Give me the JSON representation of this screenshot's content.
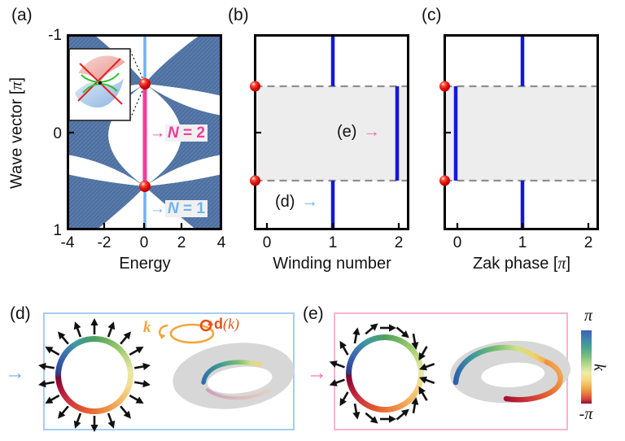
{
  "figure_labels": {
    "a": "(a)",
    "b": "(b)",
    "c": "(c)",
    "d": "(d)",
    "e": "(e)"
  },
  "panel_a": {
    "ylabel_pre": "Wave vector [",
    "pi": "π",
    "ylabel_post": "]",
    "xlabel": "Energy",
    "yticks": [
      "-1",
      "0",
      "1"
    ],
    "xticks": [
      "-4",
      "-2",
      "0",
      "2",
      "4"
    ],
    "n2_arrow": "→",
    "n2_var": "N",
    "n2_rest": " = 2",
    "n1_arrow": "→",
    "n1_var": "N",
    "n1_rest": " = 1"
  },
  "panel_b": {
    "xlabel": "Winding number",
    "xticks": [
      "0",
      "1",
      "2"
    ],
    "ref_d": "(d)",
    "ref_d_arrow": "→",
    "ref_e": "(e)",
    "ref_e_arrow": "→"
  },
  "panel_c": {
    "xlabel_pre": "Zak phase [",
    "pi": "π",
    "xlabel_post": "]",
    "xticks": [
      "0",
      "1",
      "2"
    ]
  },
  "panel_d": {
    "pointer_arrow": "→",
    "k_label": "k",
    "d_label_bold": "d",
    "d_label_arg": "(k)"
  },
  "panel_e": {
    "pointer_arrow": "→"
  },
  "colorbar": {
    "top": "π",
    "bottom": "-π",
    "axis_label": "k"
  },
  "colors": {
    "band_blue": "#4d70a2",
    "edge_line_cyan": "#6fb2ef",
    "edge_line_pink": "#f23d9a",
    "data_line_blue": "#1318d8",
    "dirac_dot_red": "#e21010",
    "dashed_gray": "#8f8f8f",
    "shade_gray": "#ededed",
    "box_d_border": "#a6cdf2",
    "box_e_border": "#f8b4d2",
    "annotation_orange": "#f2a63a",
    "annotation_red_orange": "#e84e1b"
  },
  "chart_data": [
    {
      "type": "area",
      "panel": "(a)",
      "title": "Bulk spectrum (blue bands) with zero-energy edge modes",
      "xlabel": "Energy",
      "ylabel": "Wave vector [π]",
      "xlim": [
        -4,
        4
      ],
      "ylim": [
        -1,
        1
      ],
      "xticks": [
        -4,
        -2,
        0,
        2,
        4
      ],
      "yticks": [
        -1,
        0,
        1
      ],
      "dirac_points": [
        {
          "energy": 0,
          "wave_vector": -0.5
        },
        {
          "energy": 0,
          "wave_vector": 0.5
        }
      ],
      "edge_modes": [
        {
          "energy": 0,
          "wave_vector_range": [
            -1,
            -0.5
          ],
          "label": "N = 1",
          "color": "#6fb2ef"
        },
        {
          "energy": 0,
          "wave_vector_range": [
            -0.5,
            0.5
          ],
          "label": "N = 2",
          "color": "#f23d9a"
        },
        {
          "energy": 0,
          "wave_vector_range": [
            0.5,
            1
          ],
          "label": "N = 1",
          "color": "#6fb2ef"
        }
      ],
      "inset": "Dirac-cone band crossing (3D surfaces meeting at a point)"
    },
    {
      "type": "line",
      "panel": "(b)",
      "xlabel": "Winding number",
      "xlim": [
        -0.25,
        2.25
      ],
      "ylabel": "Wave vector [π]",
      "ylim": [
        -1,
        1
      ],
      "xticks": [
        0,
        1,
        2
      ],
      "segments": [
        {
          "wave_vector_range": [
            -1,
            -0.5
          ],
          "winding_number": 1
        },
        {
          "wave_vector_range": [
            -0.5,
            0.5
          ],
          "winding_number": 2
        },
        {
          "wave_vector_range": [
            0.5,
            1
          ],
          "winding_number": 1
        }
      ],
      "transition_points_wave_vector": [
        -0.5,
        0.5
      ],
      "annotations": [
        "(d) points to winding number 1",
        "(e) points to winding number 2"
      ]
    },
    {
      "type": "line",
      "panel": "(c)",
      "xlabel": "Zak phase [π]",
      "xlim": [
        -0.25,
        2.25
      ],
      "ylabel": "Wave vector [π]",
      "ylim": [
        -1,
        1
      ],
      "xticks": [
        0,
        1,
        2
      ],
      "segments": [
        {
          "wave_vector_range": [
            -1,
            -0.5
          ],
          "zak_phase": 1
        },
        {
          "wave_vector_range": [
            -0.5,
            0.5
          ],
          "zak_phase": 0
        },
        {
          "wave_vector_range": [
            0.5,
            1
          ],
          "zak_phase": 1
        }
      ],
      "transition_points_wave_vector": [
        -0.5,
        0.5
      ]
    },
    {
      "type": "diagram",
      "panel": "(d)",
      "description": "d(k) vector field with winding number 1: arrows point radially outward around k-colored circle; untwisted band (annulus) on right",
      "colorbar": {
        "label": "k",
        "min": "-π",
        "max": "π"
      }
    },
    {
      "type": "diagram",
      "panel": "(e)",
      "description": "d(k) vector field with winding number 2: arrows rotate twice around k-colored circle; twisted (Möbius-like) band on right"
    }
  ]
}
